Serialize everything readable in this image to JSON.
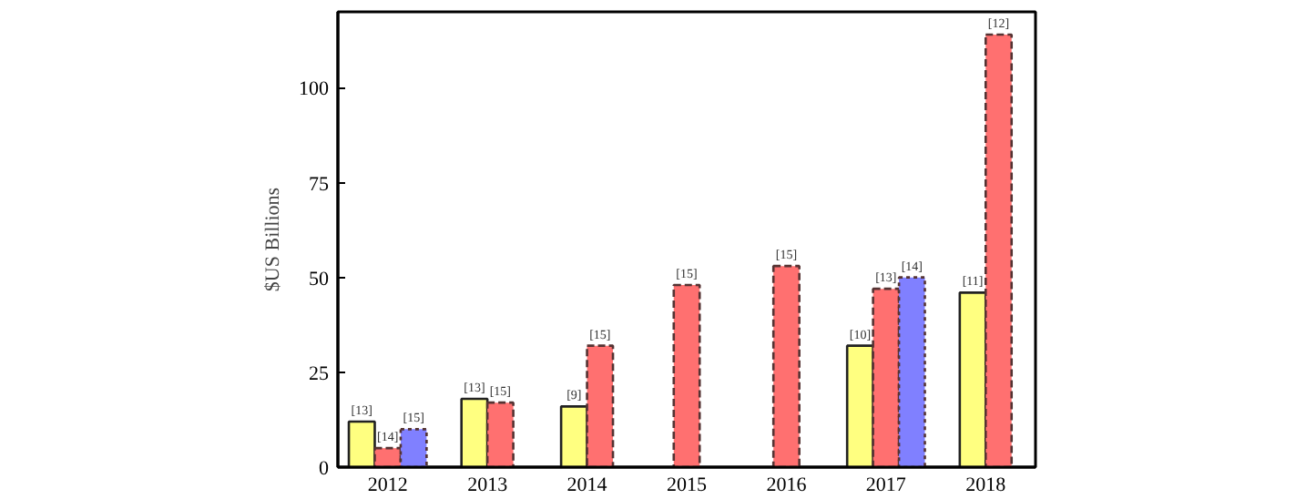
{
  "chart_data": {
    "type": "bar",
    "ylabel": "$US Billions",
    "categories": [
      "2012",
      "2013",
      "2014",
      "2015",
      "2016",
      "2017",
      "2018"
    ],
    "ylim": [
      0,
      120
    ],
    "yticks": [
      0,
      25,
      50,
      75,
      100
    ],
    "grid": false,
    "series": [
      {
        "color": "#ffff80",
        "line_style": "solid",
        "values": [
          12,
          18,
          16,
          null,
          null,
          32,
          46
        ]
      },
      {
        "color": "#ff7070",
        "line_style": "dashed",
        "values": [
          5,
          17,
          32,
          48,
          53,
          47,
          114
        ]
      },
      {
        "color": "#8080ff",
        "line_style": "dotted",
        "values": [
          10,
          null,
          null,
          null,
          null,
          50,
          null
        ]
      }
    ],
    "annotations": [
      "[13]",
      "[14]",
      "[15]",
      "[13]",
      "[15]",
      "[9]",
      "[15]",
      "[15]",
      "[15]",
      "[10]",
      "[13]",
      "[14]",
      "[11]",
      "[12]"
    ]
  }
}
